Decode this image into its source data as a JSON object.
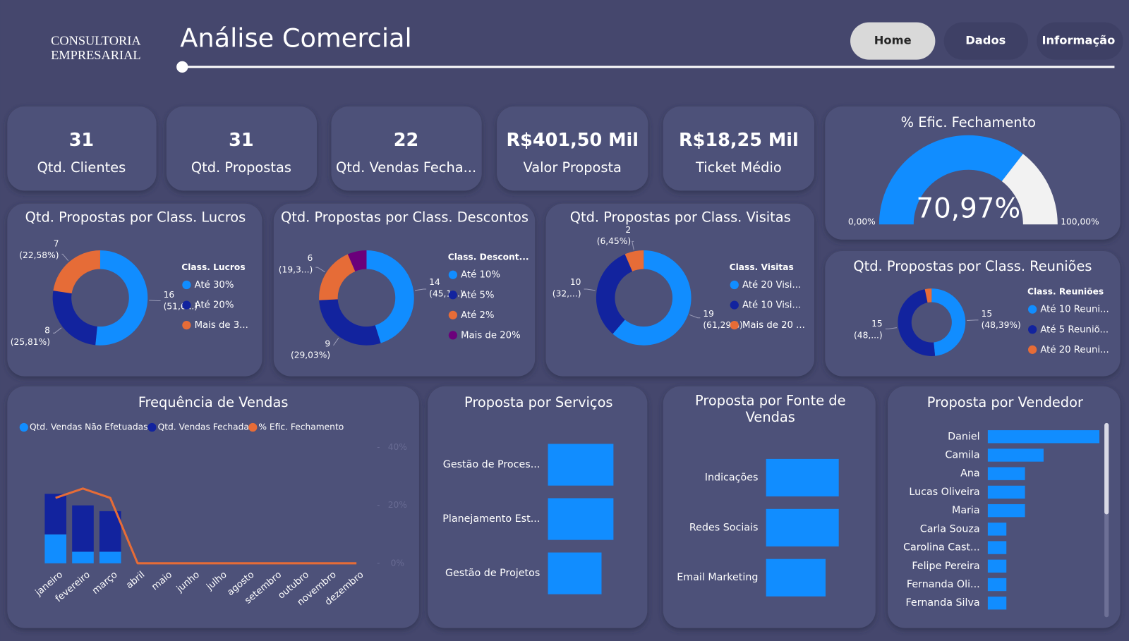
{
  "header": {
    "logo": [
      "CONSULTORIA",
      "EMPRESARIAL"
    ],
    "title": "Análise Comercial"
  },
  "nav": [
    "Home",
    "Dados",
    "Informação"
  ],
  "kpis": [
    {
      "value": "31",
      "label": "Qtd. Clientes"
    },
    {
      "value": "31",
      "label": "Qtd. Propostas"
    },
    {
      "value": "22",
      "label": "Qtd. Vendas Fecha..."
    },
    {
      "value": "R$401,50 Mil",
      "label": "Valor Proposta"
    },
    {
      "value": "R$18,25 Mil",
      "label": "Ticket Médio"
    }
  ],
  "chart_data": [
    {
      "type": "gauge",
      "title": "% Efic. Fechamento",
      "value": 70.97,
      "value_label": "70,97%",
      "ylim": [
        0,
        100
      ],
      "yticks": [
        {
          "value": 0,
          "label": "0,00%"
        },
        {
          "value": 100,
          "label": "100,00%"
        }
      ],
      "color": "#118dff",
      "track_color": "#f2f2f2"
    },
    {
      "type": "donut",
      "title": "Qtd. Propostas por Class. Lucros",
      "legend_title": "Class. Lucros",
      "categories": [
        "Até 30%",
        "Até 20%",
        "Mais de 3..."
      ],
      "values": [
        16,
        8,
        7
      ],
      "percent_labels": [
        "(51,6...)",
        "(25,81%)",
        "(22,58%)"
      ],
      "colors": [
        "#118dff",
        "#12239e",
        "#e66c37"
      ]
    },
    {
      "type": "donut",
      "title": "Qtd. Propostas por Class. Descontos",
      "legend_title": "Class. Descont...",
      "categories": [
        "Até 10%",
        "Até 5%",
        "Até 2%",
        "Mais de 20%"
      ],
      "values": [
        14,
        9,
        6,
        2
      ],
      "percent_labels": [
        "(45,1...)",
        "(29,03%)",
        "(19,3...)",
        null
      ],
      "colors": [
        "#118dff",
        "#12239e",
        "#e66c37",
        "#6b007b"
      ]
    },
    {
      "type": "donut",
      "title": "Qtd. Propostas por Class. Visitas",
      "legend_title": "Class. Visitas",
      "categories": [
        "Até 20 Visi...",
        "Até 10 Visi...",
        "Mais de 20 ..."
      ],
      "values": [
        19,
        10,
        2
      ],
      "percent_labels": [
        "(61,29%)",
        "(32,...)",
        "(6,45%)"
      ],
      "colors": [
        "#118dff",
        "#12239e",
        "#e66c37"
      ]
    },
    {
      "type": "donut",
      "title": "Qtd. Propostas por Class. Reuniões",
      "legend_title": "Class. Reuniões",
      "categories": [
        "Até 10 Reuni...",
        "Até 5 Reuniõ...",
        "Até 20 Reuni..."
      ],
      "values": [
        15,
        15,
        1
      ],
      "percent_labels": [
        "(48,39%)",
        "(48,...)",
        null
      ],
      "colors": [
        "#118dff",
        "#12239e",
        "#e66c37"
      ]
    },
    {
      "type": "combo",
      "title": "Frequência de Vendas",
      "categories": [
        "janeiro",
        "fevereiro",
        "março",
        "abril",
        "maio",
        "junho",
        "julho",
        "agosto",
        "setembro",
        "outubro",
        "novembro",
        "dezembro"
      ],
      "series": [
        {
          "name": "Qtd. Vendas Não Efetuadas",
          "color": "#118dff",
          "values": [
            5,
            2,
            2,
            0,
            0,
            0,
            0,
            0,
            0,
            0,
            0,
            0
          ]
        },
        {
          "name": "Qtd. Vendas Fechada",
          "color": "#12239e",
          "values": [
            7,
            8,
            7,
            0,
            0,
            0,
            0,
            0,
            0,
            0,
            0,
            0
          ]
        },
        {
          "name": "% Efic. Fechamento",
          "color": "#e66c37",
          "axis": "y2",
          "values": [
            22.58,
            25.81,
            22.58,
            0,
            0,
            0,
            0,
            0,
            0,
            0,
            0,
            0
          ]
        }
      ],
      "ylim": [
        0,
        20
      ],
      "y2lim": [
        0,
        40
      ],
      "y2ticks": [
        {
          "value": 0,
          "label": "0%"
        },
        {
          "value": 20,
          "label": "20%"
        },
        {
          "value": 40,
          "label": "40%"
        }
      ]
    },
    {
      "type": "barh",
      "title": "Proposta por Serviços",
      "categories": [
        "Gestão de Proces...",
        "Planejamento Est...",
        "Gestão de Projetos"
      ],
      "values": [
        11,
        11,
        9
      ],
      "xlim": [
        0,
        11
      ],
      "color": "#118dff"
    },
    {
      "type": "barh",
      "title": "Proposta por Fonte de Vendas",
      "categories": [
        "Indicações",
        "Redes Sociais",
        "Email Marketing"
      ],
      "values": [
        11,
        11,
        9
      ],
      "xlim": [
        0,
        11
      ],
      "color": "#118dff"
    },
    {
      "type": "barh",
      "title": "Proposta por Vendedor",
      "categories": [
        "Daniel",
        "Camila",
        "Ana",
        "Lucas Oliveira",
        "Maria",
        "Carla Souza",
        "Carolina Cast...",
        "Felipe Pereira",
        "Fernanda Oli...",
        "Fernanda Silva"
      ],
      "values": [
        6,
        3,
        2,
        2,
        2,
        1,
        1,
        1,
        1,
        1
      ],
      "xlim": [
        0,
        6
      ],
      "color": "#118dff"
    }
  ]
}
